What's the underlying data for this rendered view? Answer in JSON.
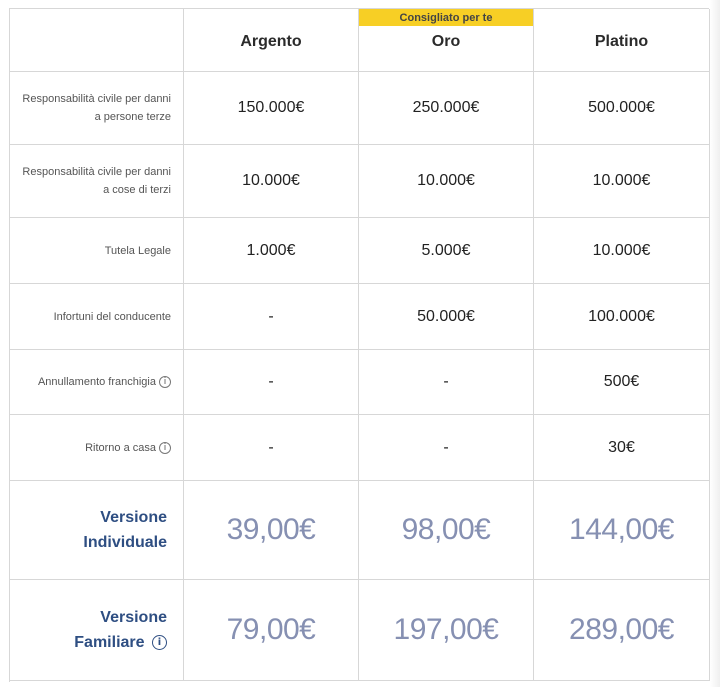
{
  "badge": "Consigliato per te",
  "plans": [
    "Argento",
    "Oro",
    "Platino"
  ],
  "rows": [
    {
      "label": "Responsabilità civile per danni a persone terze",
      "info": false,
      "values": [
        "150.000€",
        "250.000€",
        "500.000€"
      ]
    },
    {
      "label": "Responsabilità civile per danni a cose di terzi",
      "info": false,
      "values": [
        "10.000€",
        "10.000€",
        "10.000€"
      ]
    },
    {
      "label": "Tutela Legale",
      "info": false,
      "values": [
        "1.000€",
        "5.000€",
        "10.000€"
      ]
    },
    {
      "label": "Infortuni del conducente",
      "info": false,
      "values": [
        "-",
        "50.000€",
        "100.000€"
      ]
    },
    {
      "label": "Annullamento franchigia",
      "info": true,
      "values": [
        "-",
        "-",
        "500€"
      ]
    },
    {
      "label": "Ritorno a casa",
      "info": true,
      "values": [
        "-",
        "-",
        "30€"
      ]
    }
  ],
  "prices": [
    {
      "label_line1": "Versione",
      "label_line2": "Individuale",
      "info": false,
      "values": [
        "39,00€",
        "98,00€",
        "144,00€"
      ]
    },
    {
      "label_line1": "Versione",
      "label_line2": "Familiare",
      "info": true,
      "values": [
        "79,00€",
        "197,00€",
        "289,00€"
      ]
    }
  ],
  "icons": {
    "info": "info-icon"
  },
  "colors": {
    "badge": "#f7cf25",
    "price_label": "#2e4e82",
    "price": "#8690b2",
    "border": "#d7d7d7"
  }
}
